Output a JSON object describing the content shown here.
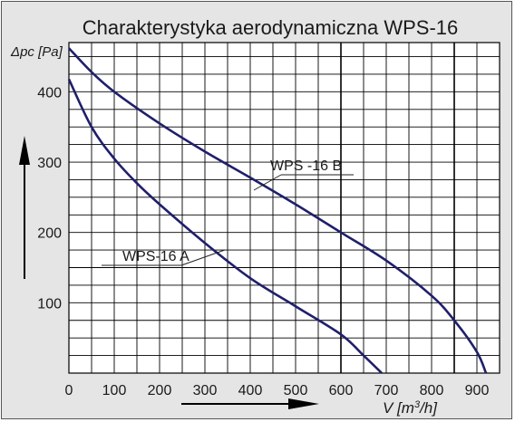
{
  "chart_data": {
    "type": "line",
    "title": "Charakterystyka aerodynamiczna  WPS-16",
    "ylabel": "Δpc [Pa]",
    "xlabel": "V [m³/h]",
    "xlim": [
      0,
      950
    ],
    "ylim": [
      0,
      470
    ],
    "x_ticks": [
      0,
      100,
      200,
      300,
      400,
      500,
      600,
      700,
      800,
      900
    ],
    "y_ticks": [
      100,
      200,
      300,
      400
    ],
    "grid": true,
    "series": [
      {
        "name": "WPS-16 A",
        "color": "#1f1f6b",
        "x": [
          0,
          50,
          100,
          150,
          200,
          300,
          400,
          500,
          600,
          650,
          690
        ],
        "y": [
          418,
          350,
          305,
          270,
          240,
          185,
          135,
          95,
          55,
          25,
          0
        ]
      },
      {
        "name": "WPS -16 B",
        "color": "#1f1f6b",
        "x": [
          0,
          50,
          100,
          200,
          300,
          400,
          500,
          600,
          700,
          800,
          850,
          900,
          920
        ],
        "y": [
          462,
          428,
          400,
          355,
          315,
          278,
          240,
          200,
          160,
          110,
          75,
          30,
          0
        ]
      }
    ]
  }
}
